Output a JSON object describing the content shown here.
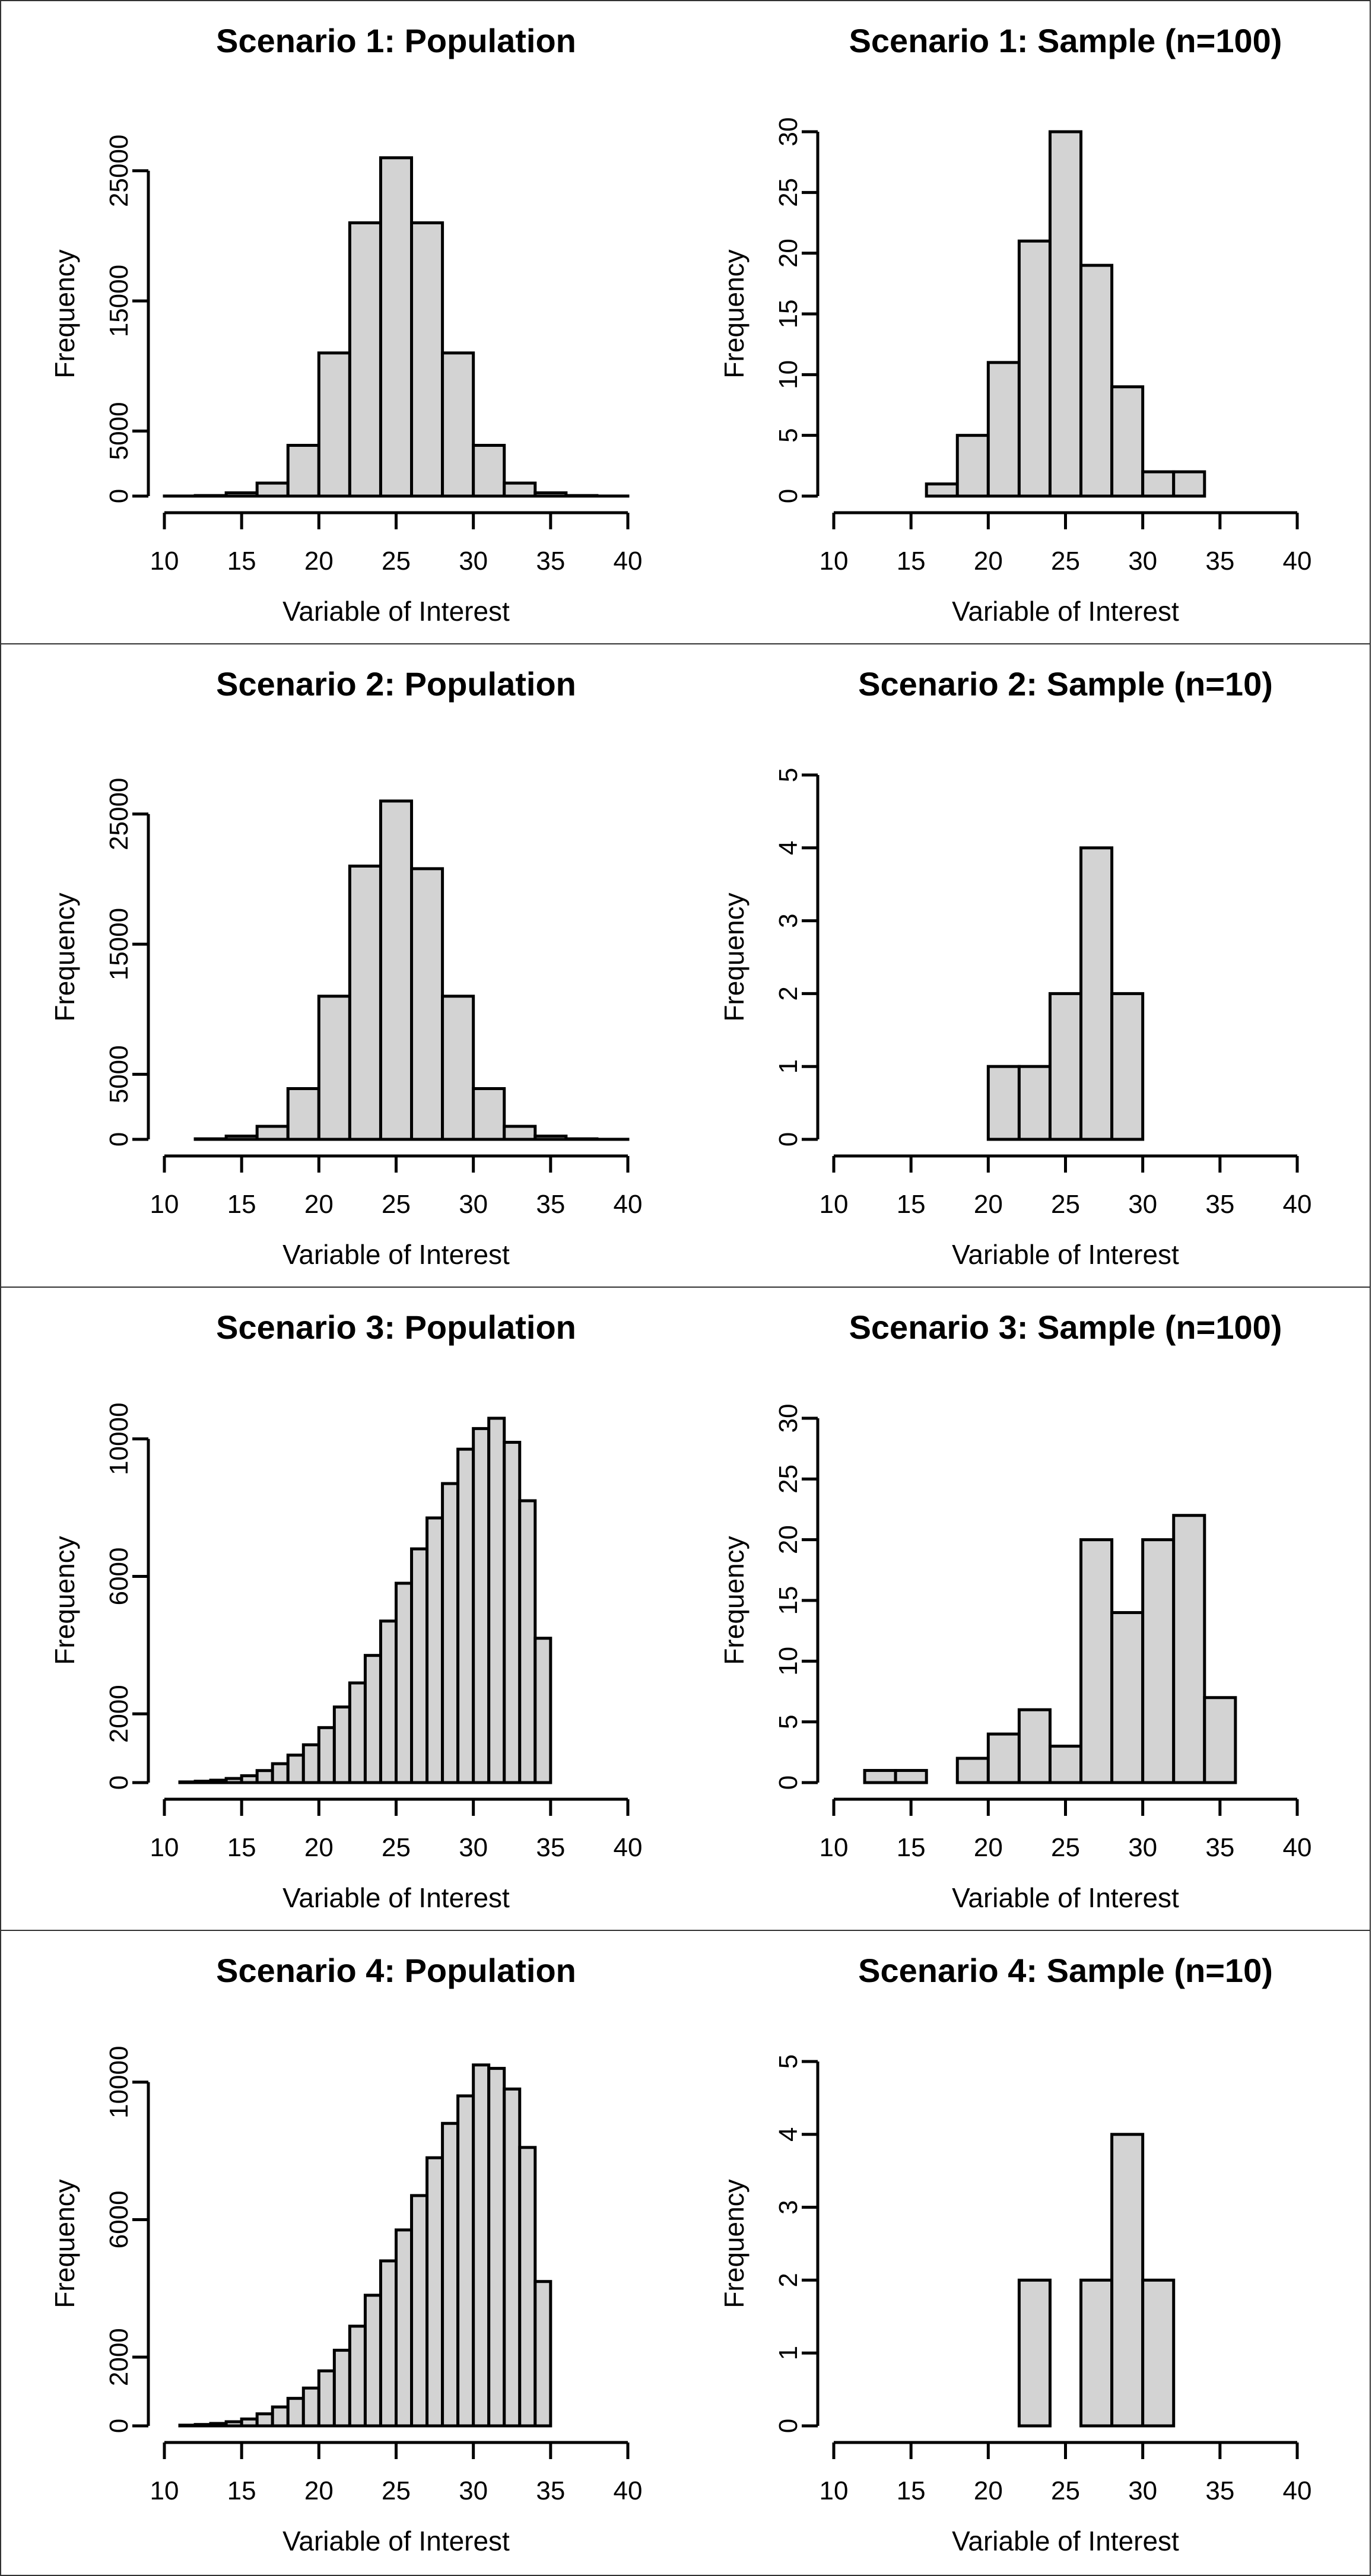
{
  "chart_data": [
    {
      "type": "bar",
      "title": "Scenario 1: Population",
      "xlabel": "Variable of Interest",
      "ylabel": "Frequency",
      "xlim": [
        10,
        40
      ],
      "xticks": [
        10,
        15,
        20,
        25,
        30,
        35,
        40
      ],
      "ylim": [
        0,
        28000
      ],
      "yticks": [
        0,
        5000,
        15000,
        25000
      ],
      "bin_edges": [
        10,
        12,
        14,
        16,
        18,
        20,
        22,
        24,
        26,
        28,
        30,
        32,
        34,
        36,
        38,
        40
      ],
      "values": [
        5,
        40,
        250,
        1000,
        3900,
        11000,
        21000,
        26000,
        21000,
        11000,
        3900,
        1000,
        250,
        40,
        5
      ]
    },
    {
      "type": "bar",
      "title": "Scenario 1: Sample (n=100)",
      "xlabel": "Variable of Interest",
      "ylabel": "Frequency",
      "xlim": [
        10,
        40
      ],
      "xticks": [
        10,
        15,
        20,
        25,
        30,
        35,
        40
      ],
      "ylim": [
        0,
        30
      ],
      "yticks": [
        0,
        5,
        10,
        15,
        20,
        25,
        30
      ],
      "bin_edges": [
        16,
        18,
        20,
        22,
        24,
        26,
        28,
        30,
        32,
        34
      ],
      "values": [
        1,
        5,
        11,
        21,
        30,
        19,
        9,
        2,
        2
      ]
    },
    {
      "type": "bar",
      "title": "Scenario 2: Population",
      "xlabel": "Variable of Interest",
      "ylabel": "Frequency",
      "xlim": [
        10,
        40
      ],
      "xticks": [
        10,
        15,
        20,
        25,
        30,
        35,
        40
      ],
      "ylim": [
        0,
        28000
      ],
      "yticks": [
        0,
        5000,
        15000,
        25000
      ],
      "bin_edges": [
        12,
        14,
        16,
        18,
        20,
        22,
        24,
        26,
        28,
        30,
        32,
        34,
        36,
        38,
        40
      ],
      "values": [
        40,
        250,
        1000,
        3900,
        11000,
        21000,
        26000,
        20800,
        11000,
        3900,
        1000,
        250,
        40,
        5
      ]
    },
    {
      "type": "bar",
      "title": "Scenario 2: Sample (n=10)",
      "xlabel": "Variable of Interest",
      "ylabel": "Frequency",
      "xlim": [
        10,
        40
      ],
      "xticks": [
        10,
        15,
        20,
        25,
        30,
        35,
        40
      ],
      "ylim": [
        0,
        5
      ],
      "yticks": [
        0,
        1,
        2,
        3,
        4,
        5
      ],
      "bin_edges": [
        20,
        22,
        24,
        26,
        28,
        30
      ],
      "values": [
        1,
        1,
        2,
        4,
        2
      ]
    },
    {
      "type": "bar",
      "title": "Scenario 3: Population",
      "xlabel": "Variable of Interest",
      "ylabel": "Frequency",
      "xlim": [
        10,
        40
      ],
      "xticks": [
        10,
        15,
        20,
        25,
        30,
        35,
        40
      ],
      "ylim": [
        0,
        10600
      ],
      "yticks": [
        0,
        2000,
        6000,
        10000
      ],
      "bin_edges": [
        11,
        12,
        13,
        14,
        15,
        16,
        17,
        18,
        19,
        20,
        21,
        22,
        23,
        24,
        25,
        26,
        27,
        28,
        29,
        30,
        31,
        32,
        33,
        34,
        35
      ],
      "values": [
        20,
        40,
        70,
        120,
        200,
        350,
        550,
        800,
        1100,
        1600,
        2200,
        2900,
        3700,
        4700,
        5800,
        6800,
        7700,
        8700,
        9700,
        10300,
        10600,
        9900,
        8200,
        4200
      ]
    },
    {
      "type": "bar",
      "title": "Scenario 3: Sample (n=100)",
      "xlabel": "Variable of Interest",
      "ylabel": "Frequency",
      "xlim": [
        10,
        40
      ],
      "xticks": [
        10,
        15,
        20,
        25,
        30,
        35,
        40
      ],
      "ylim": [
        0,
        30
      ],
      "yticks": [
        0,
        5,
        10,
        15,
        20,
        25,
        30
      ],
      "bin_edges": [
        12,
        14,
        16,
        18,
        20,
        22,
        24,
        26,
        28,
        30,
        32,
        34,
        36
      ],
      "values": [
        1,
        1,
        0,
        2,
        4,
        6,
        3,
        20,
        14,
        20,
        22,
        7
      ]
    },
    {
      "type": "bar",
      "title": "Scenario 4: Population",
      "xlabel": "Variable of Interest",
      "ylabel": "Frequency",
      "xlim": [
        10,
        40
      ],
      "xticks": [
        10,
        15,
        20,
        25,
        30,
        35,
        40
      ],
      "ylim": [
        0,
        10600
      ],
      "yticks": [
        0,
        2000,
        6000,
        10000
      ],
      "bin_edges": [
        11,
        12,
        13,
        14,
        15,
        16,
        17,
        18,
        19,
        20,
        21,
        22,
        23,
        24,
        25,
        26,
        27,
        28,
        29,
        30,
        31,
        32,
        33,
        34,
        35
      ],
      "values": [
        20,
        40,
        70,
        120,
        200,
        350,
        550,
        800,
        1100,
        1600,
        2200,
        2900,
        3800,
        4800,
        5700,
        6700,
        7800,
        8800,
        9600,
        10500,
        10400,
        9800,
        8100,
        4200
      ]
    },
    {
      "type": "bar",
      "title": "Scenario 4: Sample (n=10)",
      "xlabel": "Variable of Interest",
      "ylabel": "Frequency",
      "xlim": [
        10,
        40
      ],
      "xticks": [
        10,
        15,
        20,
        25,
        30,
        35,
        40
      ],
      "ylim": [
        0,
        5
      ],
      "yticks": [
        0,
        1,
        2,
        3,
        4,
        5
      ],
      "bin_edges": [
        22,
        24,
        26,
        28,
        30,
        32
      ],
      "values": [
        2,
        0,
        2,
        4,
        2
      ]
    }
  ]
}
